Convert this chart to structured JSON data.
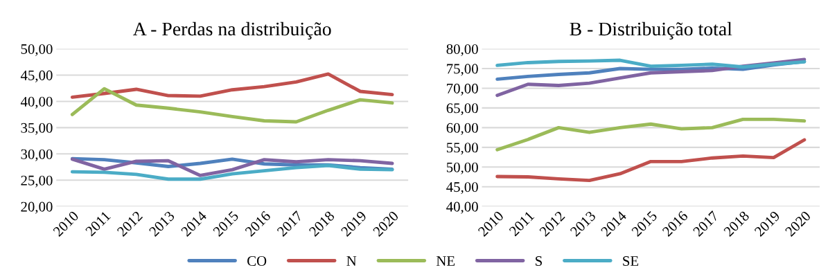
{
  "chart_data": [
    {
      "type": "line",
      "title": "A - Perdas na distribuição",
      "categories": [
        "2010",
        "2011",
        "2012",
        "2013",
        "2014",
        "2015",
        "2016",
        "2017",
        "2018",
        "2019",
        "2020"
      ],
      "ylim": [
        20,
        50
      ],
      "yticks": [
        {
          "value": 20,
          "label": "20,00"
        },
        {
          "value": 25,
          "label": "25,00"
        },
        {
          "value": 30,
          "label": "30,00"
        },
        {
          "value": 35,
          "label": "35,00"
        },
        {
          "value": 40,
          "label": "40,00"
        },
        {
          "value": 45,
          "label": "45,00"
        },
        {
          "value": 50,
          "label": "50,00"
        }
      ],
      "grid": "y",
      "legend": "bottom",
      "series": [
        {
          "name": "CO",
          "color": "#4f81bd",
          "values": [
            29.1,
            28.9,
            28.3,
            27.6,
            28.2,
            29.0,
            28.1,
            27.9,
            27.9,
            27.4,
            27.1
          ]
        },
        {
          "name": "N",
          "color": "#c0504d",
          "values": [
            40.8,
            41.5,
            42.3,
            41.1,
            41.0,
            42.2,
            42.8,
            43.7,
            45.2,
            41.9,
            41.3
          ]
        },
        {
          "name": "NE",
          "color": "#9bbb59",
          "values": [
            37.5,
            42.4,
            39.3,
            38.7,
            38.0,
            37.1,
            36.3,
            36.1,
            38.3,
            40.3,
            39.7
          ]
        },
        {
          "name": "S",
          "color": "#8064a2",
          "values": [
            29.0,
            27.1,
            28.6,
            28.7,
            25.9,
            27.0,
            28.9,
            28.5,
            28.9,
            28.7,
            28.2
          ]
        },
        {
          "name": "SE",
          "color": "#4bacc6",
          "values": [
            26.6,
            26.5,
            26.1,
            25.2,
            25.2,
            26.2,
            26.8,
            27.4,
            27.8,
            27.1,
            27.0
          ]
        }
      ]
    },
    {
      "type": "line",
      "title": "B - Distribuição total",
      "categories": [
        "2010",
        "2011",
        "2012",
        "2013",
        "2014",
        "2015",
        "2016",
        "2017",
        "2018",
        "2019",
        "2020"
      ],
      "ylim": [
        40,
        80
      ],
      "yticks": [
        {
          "value": 40,
          "label": "40,00"
        },
        {
          "value": 45,
          "label": "45,00"
        },
        {
          "value": 50,
          "label": "50,00"
        },
        {
          "value": 55,
          "label": "55,00"
        },
        {
          "value": 60,
          "label": "60,00"
        },
        {
          "value": 65,
          "label": "65,00"
        },
        {
          "value": 70,
          "label": "70,00"
        },
        {
          "value": 75,
          "label": "75,00"
        },
        {
          "value": 80,
          "label": "80,00"
        }
      ],
      "grid": "y",
      "series": [
        {
          "name": "CO",
          "color": "#4f81bd",
          "values": [
            72.3,
            73.0,
            73.5,
            73.9,
            75.0,
            74.8,
            74.8,
            75.1,
            74.8,
            75.9,
            76.8
          ]
        },
        {
          "name": "N",
          "color": "#c0504d",
          "values": [
            47.6,
            47.5,
            47.0,
            46.6,
            48.3,
            51.4,
            51.4,
            52.3,
            52.8,
            52.4,
            56.9
          ]
        },
        {
          "name": "NE",
          "color": "#9bbb59",
          "values": [
            54.4,
            57.0,
            60.0,
            58.8,
            60.0,
            60.9,
            59.7,
            60.0,
            62.1,
            62.1,
            61.7
          ]
        },
        {
          "name": "S",
          "color": "#8064a2",
          "values": [
            68.2,
            71.0,
            70.7,
            71.3,
            72.6,
            73.9,
            74.2,
            74.5,
            75.6,
            76.4,
            77.3
          ]
        },
        {
          "name": "SE",
          "color": "#4bacc6",
          "values": [
            75.8,
            76.5,
            76.8,
            76.9,
            77.1,
            75.6,
            75.8,
            76.1,
            75.4,
            76.1,
            76.7
          ]
        }
      ]
    }
  ]
}
